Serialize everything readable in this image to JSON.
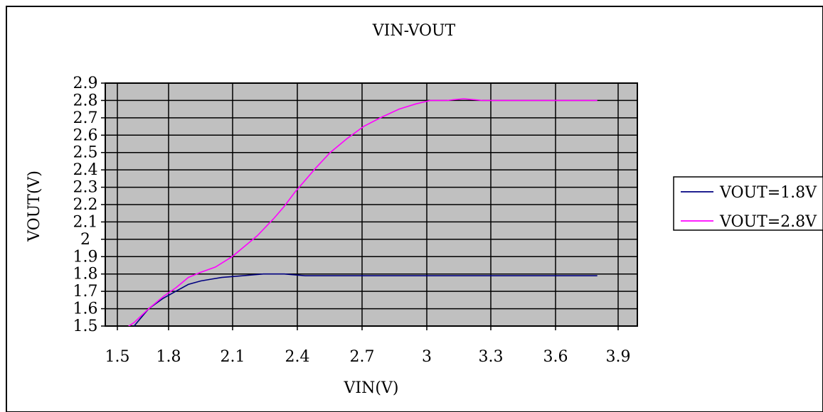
{
  "chart_data": {
    "type": "line",
    "title": "VIN-VOUT",
    "xlabel": "VIN(V)",
    "ylabel": "VOUT(V)",
    "xlim": [
      1.5,
      3.9
    ],
    "ylim": [
      1.5,
      2.9
    ],
    "x_ticks": [
      "1.5",
      "1.8",
      "2.1",
      "2.4",
      "2.7",
      "3",
      "3.3",
      "3.6",
      "3.9"
    ],
    "y_ticks": [
      "1.5",
      "1.6",
      "1.7",
      "1.8",
      "1.9",
      "2",
      "2.1",
      "2.2",
      "2.3",
      "2.4",
      "2.5",
      "2.6",
      "2.7",
      "2.8",
      "2.9"
    ],
    "grid": true,
    "legend_position": "right",
    "plot_background": "#c0c0c0",
    "series": [
      {
        "name": "VOUT=1.8V",
        "color": "#000080",
        "points": [
          [
            1.53,
            1.48
          ],
          [
            1.58,
            1.5
          ],
          [
            1.65,
            1.6
          ],
          [
            1.72,
            1.66
          ],
          [
            1.78,
            1.7
          ],
          [
            1.84,
            1.74
          ],
          [
            1.9,
            1.76
          ],
          [
            1.95,
            1.77
          ],
          [
            2.0,
            1.78
          ],
          [
            2.1,
            1.79
          ],
          [
            2.2,
            1.8
          ],
          [
            2.3,
            1.8
          ],
          [
            2.4,
            1.79
          ],
          [
            2.6,
            1.79
          ],
          [
            2.8,
            1.79
          ],
          [
            3.0,
            1.79
          ],
          [
            3.2,
            1.79
          ],
          [
            3.4,
            1.79
          ],
          [
            3.6,
            1.79
          ],
          [
            3.8,
            1.79
          ]
        ]
      },
      {
        "name": "VOUT=2.8V",
        "color": "#ff00ff",
        "points": [
          [
            1.53,
            1.48
          ],
          [
            1.58,
            1.52
          ],
          [
            1.65,
            1.6
          ],
          [
            1.72,
            1.67
          ],
          [
            1.78,
            1.72
          ],
          [
            1.84,
            1.78
          ],
          [
            1.9,
            1.81
          ],
          [
            1.97,
            1.84
          ],
          [
            2.05,
            1.9
          ],
          [
            2.1,
            1.95
          ],
          [
            2.17,
            2.02
          ],
          [
            2.25,
            2.12
          ],
          [
            2.3,
            2.19
          ],
          [
            2.35,
            2.27
          ],
          [
            2.4,
            2.34
          ],
          [
            2.45,
            2.41
          ],
          [
            2.52,
            2.5
          ],
          [
            2.6,
            2.58
          ],
          [
            2.68,
            2.65
          ],
          [
            2.76,
            2.7
          ],
          [
            2.85,
            2.75
          ],
          [
            2.93,
            2.78
          ],
          [
            3.0,
            2.8
          ],
          [
            3.08,
            2.8
          ],
          [
            3.16,
            2.81
          ],
          [
            3.25,
            2.8
          ],
          [
            3.4,
            2.8
          ],
          [
            3.6,
            2.8
          ],
          [
            3.8,
            2.8
          ]
        ]
      }
    ]
  }
}
